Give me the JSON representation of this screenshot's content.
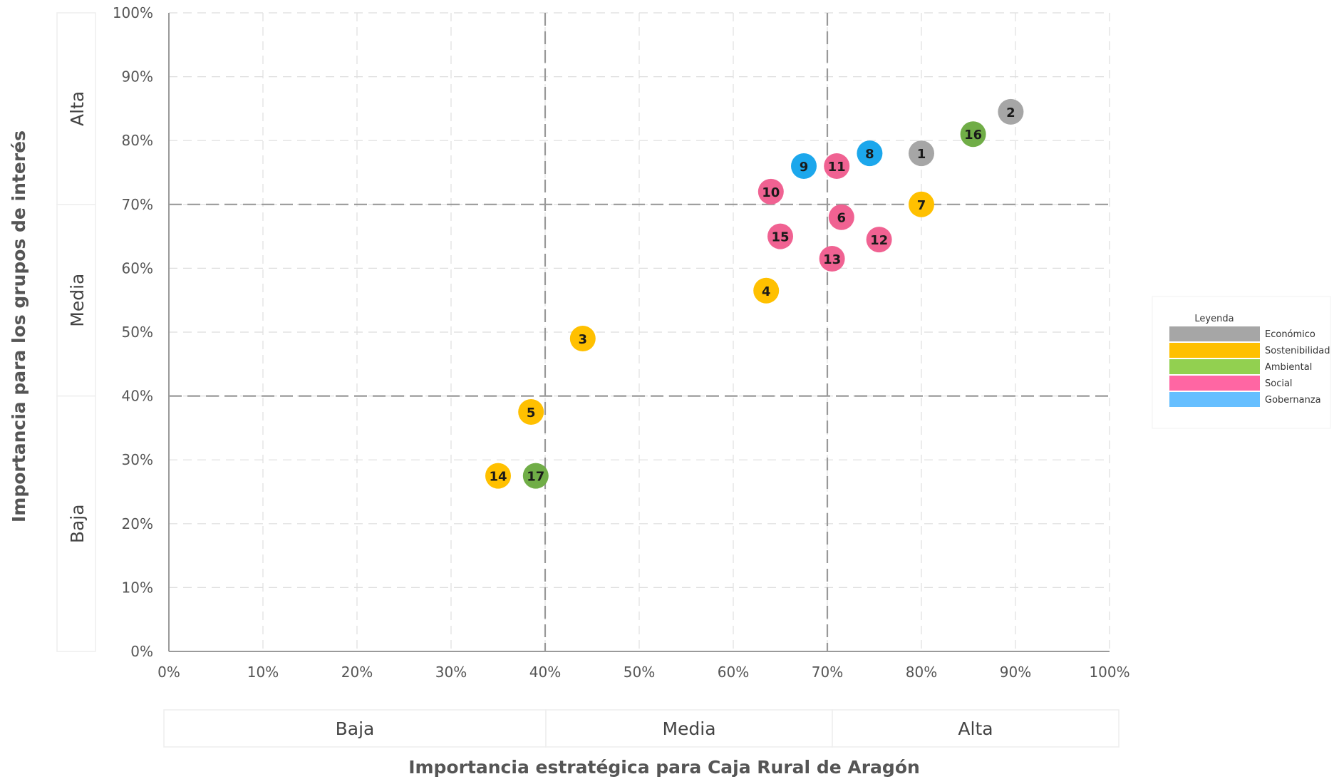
{
  "chart_data": {
    "type": "scatter",
    "title": "",
    "xlabel": "Importancia estratégica para Caja Rural de Aragón",
    "ylabel": "Importancia para los grupos de interés",
    "xlim": [
      0,
      100
    ],
    "ylim": [
      0,
      100
    ],
    "x_ticks": [
      "0%",
      "10%",
      "20%",
      "30%",
      "40%",
      "50%",
      "60%",
      "70%",
      "80%",
      "90%",
      "100%"
    ],
    "y_ticks": [
      "0%",
      "10%",
      "20%",
      "30%",
      "40%",
      "50%",
      "60%",
      "70%",
      "80%",
      "90%",
      "100%"
    ],
    "grid": true,
    "thresholds": {
      "x": [
        40,
        70
      ],
      "y": [
        40,
        70
      ]
    },
    "x_bands": [
      {
        "label": "Baja",
        "from": 0,
        "to": 40
      },
      {
        "label": "Media",
        "from": 40,
        "to": 70
      },
      {
        "label": "Alta",
        "from": 70,
        "to": 100
      }
    ],
    "y_bands": [
      {
        "label": "Baja",
        "from": 0,
        "to": 40
      },
      {
        "label": "Media",
        "from": 40,
        "to": 70
      },
      {
        "label": "Alta",
        "from": 70,
        "to": 100
      }
    ],
    "legend": {
      "title": "Leyenda",
      "position": "right",
      "items": [
        {
          "key": "economico",
          "label": "Económico",
          "color": "#A6A6A6"
        },
        {
          "key": "sostenibilidad",
          "label": "Sostenibilidad",
          "color": "#FFC000"
        },
        {
          "key": "ambiental",
          "label": "Ambiental",
          "color": "#92D050"
        },
        {
          "key": "social",
          "label": "Social",
          "color": "#FF66A3"
        },
        {
          "key": "gobernanza",
          "label": "Gobernanza",
          "color": "#66BFFF"
        }
      ]
    },
    "point_colors": {
      "economico": "#A6A6A6",
      "sostenibilidad": "#FFC000",
      "ambiental": "#70AD47",
      "social": "#F06292",
      "gobernanza": "#1CA7EC"
    },
    "points": [
      {
        "label": "1",
        "x": 80,
        "y": 78,
        "category": "economico"
      },
      {
        "label": "2",
        "x": 89.5,
        "y": 84.5,
        "category": "economico"
      },
      {
        "label": "3",
        "x": 44,
        "y": 49,
        "category": "sostenibilidad"
      },
      {
        "label": "4",
        "x": 63.5,
        "y": 56.5,
        "category": "sostenibilidad"
      },
      {
        "label": "5",
        "x": 38.5,
        "y": 37.5,
        "category": "sostenibilidad"
      },
      {
        "label": "6",
        "x": 71.5,
        "y": 68,
        "category": "social"
      },
      {
        "label": "7",
        "x": 80,
        "y": 70,
        "category": "sostenibilidad"
      },
      {
        "label": "8",
        "x": 74.5,
        "y": 78,
        "category": "gobernanza"
      },
      {
        "label": "9",
        "x": 67.5,
        "y": 76,
        "category": "gobernanza"
      },
      {
        "label": "10",
        "x": 64,
        "y": 72,
        "category": "social"
      },
      {
        "label": "11",
        "x": 71,
        "y": 76,
        "category": "social"
      },
      {
        "label": "12",
        "x": 75.5,
        "y": 64.5,
        "category": "social"
      },
      {
        "label": "13",
        "x": 70.5,
        "y": 61.5,
        "category": "social"
      },
      {
        "label": "14",
        "x": 35,
        "y": 27.5,
        "category": "sostenibilidad"
      },
      {
        "label": "15",
        "x": 65,
        "y": 65,
        "category": "social"
      },
      {
        "label": "16",
        "x": 85.5,
        "y": 81,
        "category": "ambiental"
      },
      {
        "label": "17",
        "x": 39,
        "y": 27.5,
        "category": "ambiental"
      }
    ]
  }
}
